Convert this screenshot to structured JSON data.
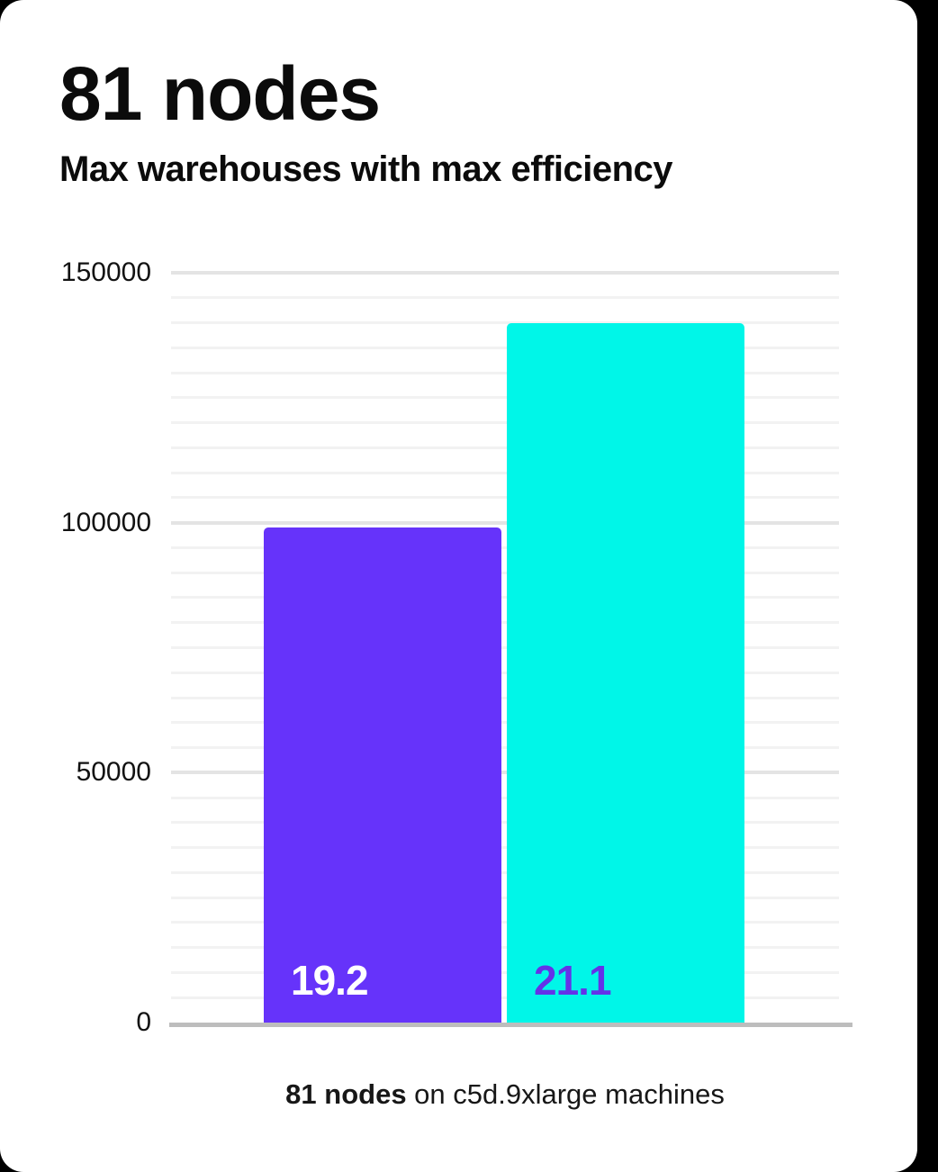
{
  "page": {
    "background_color": "#000000",
    "card_color": "#ffffff"
  },
  "header": {
    "title": "81 nodes",
    "subtitle": "Max warehouses with max efficiency"
  },
  "chart_data": {
    "type": "bar",
    "title": "81 nodes",
    "subtitle": "Max warehouses with max efficiency",
    "categories": [
      "19.2",
      "21.1"
    ],
    "values": [
      99000,
      140000
    ],
    "bar_labels": [
      "19.2",
      "21.1"
    ],
    "bar_colors": [
      "#6633fa",
      "#00f6e8"
    ],
    "bar_label_colors": [
      "#ffffff",
      "#6432e8"
    ],
    "ylim": [
      0,
      150000
    ],
    "ytick_values": [
      0,
      50000,
      100000,
      150000
    ],
    "ytick_labels": [
      "0",
      "50000",
      "100000",
      "150000"
    ],
    "minor_grid_step": 5000,
    "grid": true,
    "legend": false,
    "xlabel": "",
    "ylabel": ""
  },
  "caption": {
    "bold": "81 nodes",
    "rest": " on c5d.9xlarge machines"
  }
}
